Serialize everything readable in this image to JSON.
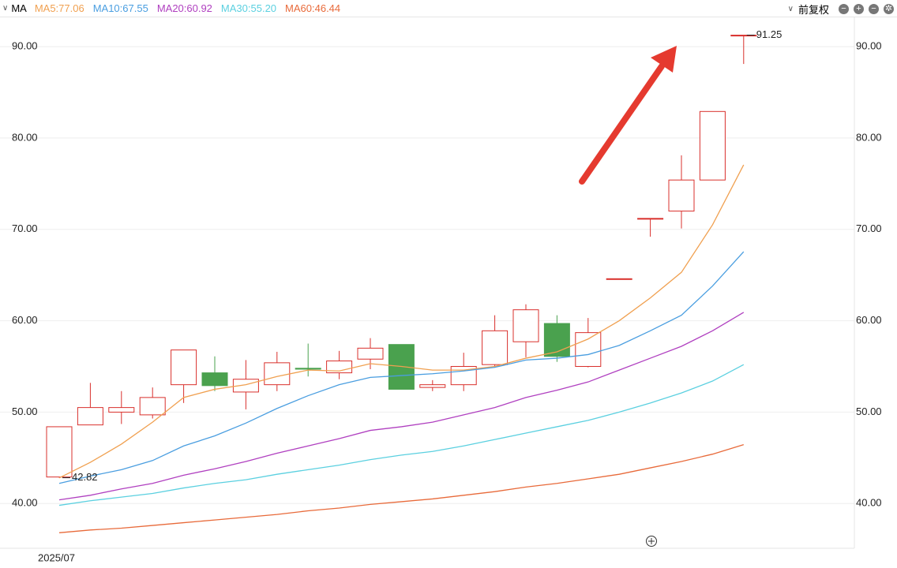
{
  "chart_data": {
    "type": "candlestick",
    "menu_label": "MA",
    "adjust_label": "前复权",
    "categories": [
      "2025/07",
      null,
      null,
      null,
      null,
      null,
      null,
      null,
      null,
      null,
      null,
      null,
      null,
      null,
      null,
      null,
      null,
      null,
      null,
      null,
      null,
      null,
      null
    ],
    "open": [
      42.9,
      48.6,
      50.0,
      49.7,
      53.0,
      54.3,
      52.2,
      53.0,
      54.8,
      54.3,
      55.8,
      57.4,
      52.7,
      53.0,
      55.2,
      57.7,
      59.7,
      55.0,
      64.6,
      71.2,
      72.0,
      75.4,
      91.2
    ],
    "high": [
      48.4,
      53.2,
      52.3,
      52.7,
      56.8,
      56.1,
      55.7,
      56.6,
      57.5,
      56.7,
      58.1,
      57.4,
      53.5,
      56.5,
      60.6,
      61.8,
      60.6,
      60.3,
      64.6,
      71.2,
      78.1,
      82.9,
      91.25
    ],
    "low": [
      42.82,
      48.6,
      48.7,
      49.3,
      51.0,
      52.3,
      50.3,
      52.3,
      53.9,
      53.6,
      54.7,
      52.5,
      52.3,
      52.3,
      54.9,
      56.0,
      55.5,
      54.9,
      64.6,
      69.2,
      70.1,
      75.4,
      88.1
    ],
    "close": [
      48.4,
      50.5,
      50.5,
      51.6,
      56.8,
      52.9,
      53.6,
      55.4,
      54.7,
      55.6,
      57.0,
      52.5,
      53.0,
      55.0,
      58.9,
      61.2,
      56.1,
      58.7,
      64.6,
      71.2,
      75.4,
      82.9,
      91.25
    ],
    "up_color": "#d9302c",
    "down_color": "#4aa14e",
    "low_label": "42.82",
    "high_label": "91.25",
    "series": [
      {
        "name": "MA5:77.06",
        "color": "#f0a050",
        "values": [
          42.8,
          44.5,
          46.5,
          48.9,
          51.6,
          52.5,
          53.0,
          53.9,
          54.6,
          54.5,
          55.3,
          55.0,
          54.6,
          54.6,
          55.0,
          55.9,
          56.6,
          58.0,
          60.0,
          62.5,
          65.3,
          70.5,
          77.06
        ]
      },
      {
        "name": "MA10:67.55",
        "color": "#4a9ee0",
        "values": [
          42.2,
          43.0,
          43.7,
          44.7,
          46.3,
          47.4,
          48.8,
          50.4,
          51.8,
          53.0,
          53.8,
          54.0,
          54.2,
          54.5,
          54.9,
          55.7,
          55.9,
          56.3,
          57.3,
          58.9,
          60.6,
          63.8,
          67.55
        ]
      },
      {
        "name": "MA20:60.92",
        "color": "#b040c0",
        "values": [
          40.4,
          40.9,
          41.6,
          42.2,
          43.1,
          43.8,
          44.6,
          45.5,
          46.3,
          47.1,
          48.0,
          48.4,
          48.9,
          49.7,
          50.5,
          51.6,
          52.4,
          53.3,
          54.6,
          55.9,
          57.2,
          58.9,
          60.92
        ]
      },
      {
        "name": "MA30:55.20",
        "color": "#5bd0e0",
        "values": [
          39.8,
          40.3,
          40.7,
          41.1,
          41.7,
          42.2,
          42.6,
          43.2,
          43.7,
          44.2,
          44.8,
          45.3,
          45.7,
          46.3,
          47.0,
          47.7,
          48.4,
          49.1,
          50.0,
          51.0,
          52.1,
          53.4,
          55.2
        ]
      },
      {
        "name": "MA60:46.44",
        "color": "#e86a3a",
        "values": [
          36.8,
          37.1,
          37.3,
          37.6,
          37.9,
          38.2,
          38.5,
          38.8,
          39.2,
          39.5,
          39.9,
          40.2,
          40.5,
          40.9,
          41.3,
          41.8,
          42.2,
          42.7,
          43.2,
          43.9,
          44.6,
          45.4,
          46.44
        ]
      }
    ],
    "ylim": [
      35.1,
      93.2
    ],
    "yticks": [
      {
        "value": 40,
        "label": "40.00"
      },
      {
        "value": 50,
        "label": "50.00"
      },
      {
        "value": 60,
        "label": "60.00"
      },
      {
        "value": 70,
        "label": "70.00"
      },
      {
        "value": 80,
        "label": "80.00"
      },
      {
        "value": 90,
        "label": "90.00"
      }
    ],
    "grid": true
  }
}
